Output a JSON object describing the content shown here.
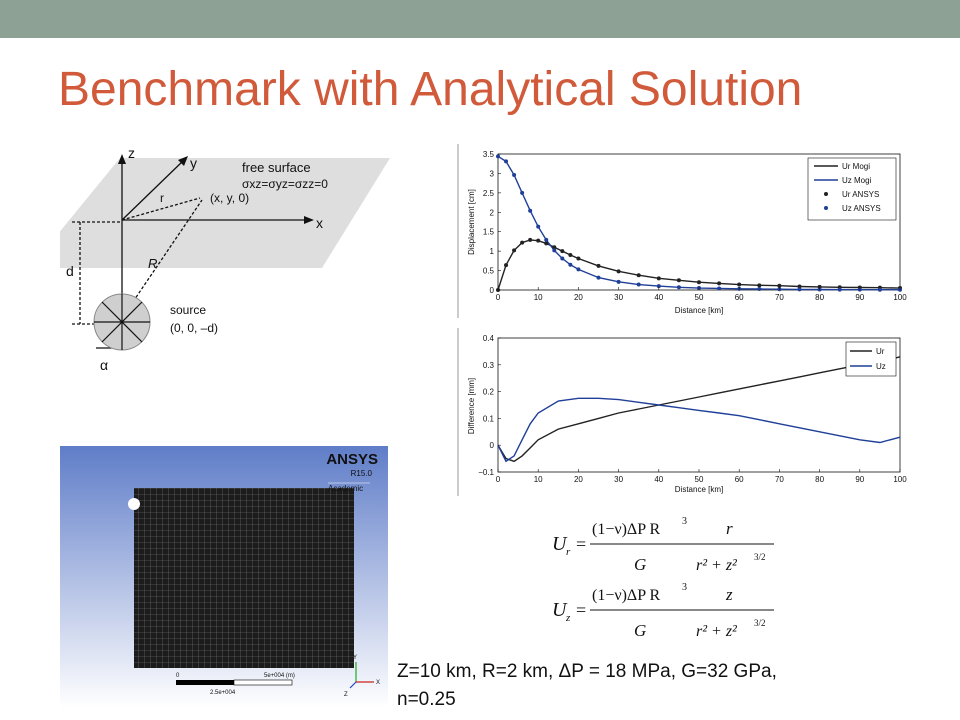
{
  "slide": {
    "title": "Benchmark with Analytical Solution",
    "params_line1": "Z=10 km, R=2 km, ΔP = 18 MPa, G=32 GPa,",
    "params_line2": "n=0.25",
    "colors": {
      "title": "#d05a3a",
      "topbar": "#8da194",
      "dark": "#222222",
      "blue": "#1f3f99"
    }
  },
  "diagram": {
    "z": "z",
    "y": "y",
    "x": "x",
    "r": "r",
    "R": "R",
    "d": "d",
    "alpha": "α",
    "free_surface": "free surface",
    "stress": "σxz=σyz=σzz=0",
    "point": "(x, y, 0)",
    "source": "source",
    "source_coords": "(0, 0, –d)"
  },
  "mesh": {
    "brand": "ANSYS",
    "version": "R15.0",
    "edition": "Academic",
    "scale_left": "0",
    "scale_right": "5e+004 (m)",
    "scale_mid": "2.5e+004",
    "axis_y": "Y",
    "axis_x": "X",
    "axis_z": "Z"
  },
  "formulas": {
    "ur_lhs": "U",
    "ur_sub": "r",
    "uz_lhs": "U",
    "uz_sub": "z",
    "num_left": "(1−ν)ΔP R",
    "cube": "3",
    "den_left": "G",
    "ur_num_right": "r",
    "uz_num_right": "z",
    "den_right": "r² + z²",
    "power": "3/2",
    "equals": "="
  },
  "chart_data": [
    {
      "type": "line",
      "xlabel": "Distance [km]",
      "ylabel": "Displacement [cm]",
      "xlim": [
        0,
        100
      ],
      "ylim": [
        0,
        3.5
      ],
      "xticks": [
        "0",
        "10",
        "20",
        "30",
        "40",
        "50",
        "60",
        "70",
        "80",
        "90",
        "100"
      ],
      "yticks": [
        "0",
        "0.5",
        "1",
        "1.5",
        "2",
        "2.5",
        "3",
        "3.5"
      ],
      "legend_position": "top-right",
      "x": [
        0,
        2,
        4,
        6,
        8,
        10,
        12,
        14,
        16,
        18,
        20,
        25,
        30,
        35,
        40,
        45,
        50,
        55,
        60,
        65,
        70,
        75,
        80,
        85,
        90,
        95,
        100
      ],
      "series": [
        {
          "name": "Ur Mogi",
          "style": "line",
          "color": "#222222",
          "values": [
            0,
            0.64,
            1.02,
            1.22,
            1.29,
            1.27,
            1.2,
            1.1,
            1.0,
            0.9,
            0.81,
            0.62,
            0.48,
            0.38,
            0.3,
            0.25,
            0.2,
            0.17,
            0.14,
            0.12,
            0.11,
            0.09,
            0.08,
            0.07,
            0.065,
            0.06,
            0.05
          ]
        },
        {
          "name": "Uz Mogi",
          "style": "line",
          "color": "#1f3f99",
          "values": [
            3.44,
            3.31,
            2.96,
            2.5,
            2.04,
            1.63,
            1.29,
            1.02,
            0.81,
            0.65,
            0.53,
            0.32,
            0.21,
            0.14,
            0.1,
            0.07,
            0.05,
            0.04,
            0.03,
            0.025,
            0.02,
            0.015,
            0.013,
            0.011,
            0.009,
            0.008,
            0.007
          ]
        },
        {
          "name": "Ur ANSYS",
          "style": "points",
          "color": "#222222",
          "values": [
            0,
            0.64,
            1.02,
            1.22,
            1.29,
            1.27,
            1.2,
            1.1,
            1.0,
            0.9,
            0.81,
            0.62,
            0.48,
            0.38,
            0.3,
            0.25,
            0.2,
            0.17,
            0.14,
            0.12,
            0.11,
            0.09,
            0.08,
            0.07,
            0.065,
            0.06,
            0.05
          ]
        },
        {
          "name": "Uz ANSYS",
          "style": "points",
          "color": "#1f3f99",
          "values": [
            3.44,
            3.31,
            2.96,
            2.5,
            2.04,
            1.63,
            1.29,
            1.02,
            0.81,
            0.65,
            0.53,
            0.32,
            0.21,
            0.14,
            0.1,
            0.07,
            0.05,
            0.04,
            0.03,
            0.025,
            0.02,
            0.015,
            0.013,
            0.011,
            0.009,
            0.008,
            0.007
          ]
        }
      ]
    },
    {
      "type": "line",
      "xlabel": "Distance [km]",
      "ylabel": "Difference [mm]",
      "xlim": [
        0,
        100
      ],
      "ylim": [
        -0.1,
        0.4
      ],
      "xticks": [
        "0",
        "10",
        "20",
        "30",
        "40",
        "50",
        "60",
        "70",
        "80",
        "90",
        "100"
      ],
      "yticks": [
        "−0.1",
        "0",
        "0.1",
        "0.2",
        "0.3",
        "0.4"
      ],
      "legend_position": "top-right",
      "x": [
        0,
        2,
        4,
        6,
        8,
        10,
        15,
        20,
        25,
        30,
        35,
        40,
        45,
        50,
        55,
        60,
        65,
        70,
        75,
        80,
        85,
        90,
        95,
        100
      ],
      "series": [
        {
          "name": "Ur",
          "color": "#222222",
          "values": [
            0,
            -0.05,
            -0.06,
            -0.04,
            -0.01,
            0.02,
            0.06,
            0.08,
            0.1,
            0.12,
            0.135,
            0.15,
            0.165,
            0.18,
            0.195,
            0.21,
            0.225,
            0.24,
            0.255,
            0.27,
            0.285,
            0.3,
            0.31,
            0.33
          ]
        },
        {
          "name": "Uz",
          "color": "#1f3f99",
          "values": [
            0,
            -0.06,
            -0.04,
            0.02,
            0.08,
            0.12,
            0.165,
            0.175,
            0.175,
            0.17,
            0.16,
            0.15,
            0.14,
            0.13,
            0.12,
            0.11,
            0.095,
            0.08,
            0.065,
            0.05,
            0.035,
            0.02,
            0.01,
            0.03
          ]
        }
      ]
    }
  ]
}
